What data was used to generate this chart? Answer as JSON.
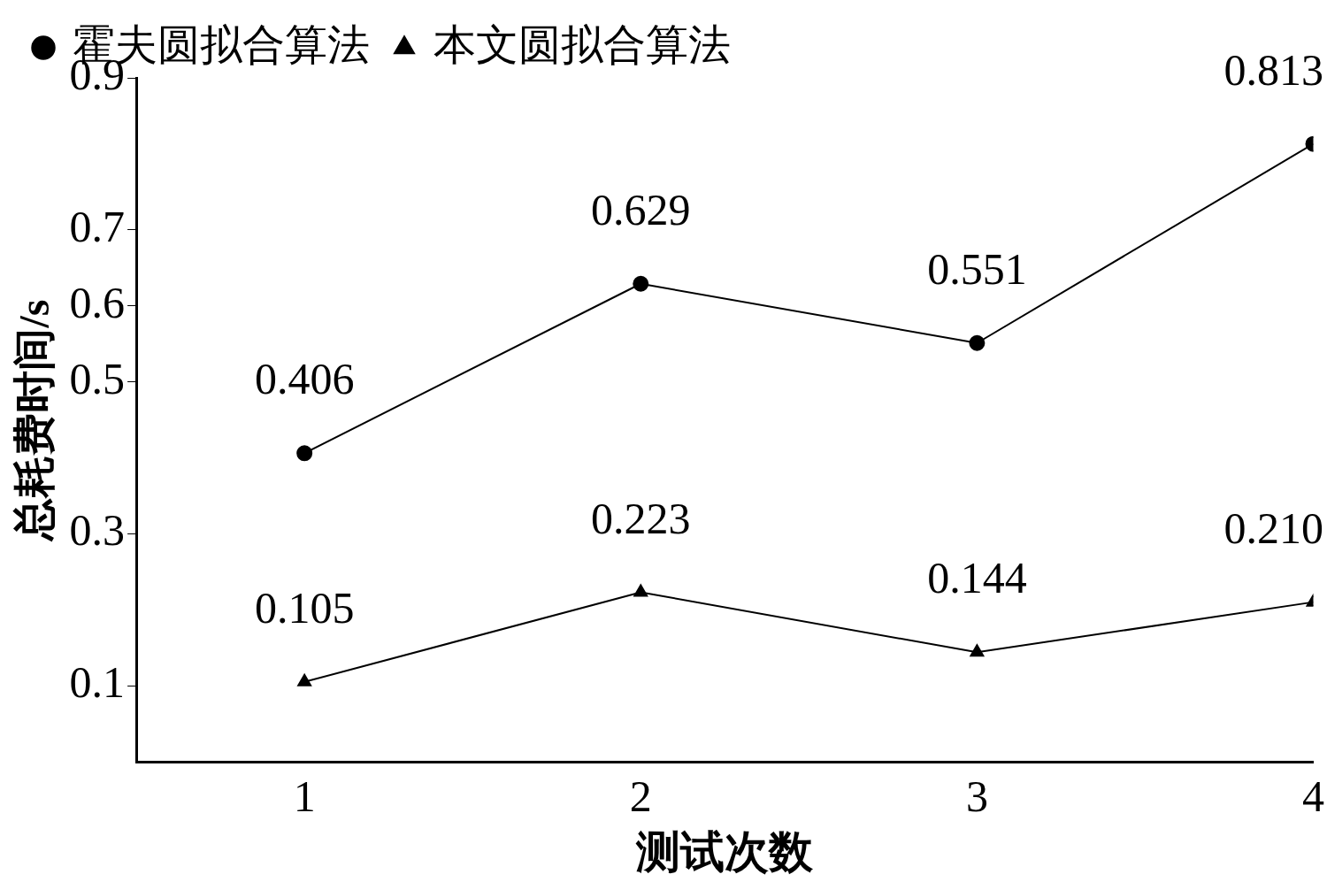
{
  "chart_data": {
    "type": "line",
    "xlabel": "测试次数",
    "ylabel": "总耗费时间/s",
    "x": [
      1,
      2,
      3,
      4
    ],
    "xlim": [
      0.5,
      4
    ],
    "xticks": [
      1,
      2,
      3,
      4
    ],
    "ylim": [
      0,
      0.9
    ],
    "yticks": [
      0.1,
      0.3,
      0.5,
      0.6,
      0.7,
      0.9
    ],
    "series": [
      {
        "name": "霍夫圆拟合算法",
        "color": "#000000",
        "marker": "circle",
        "values": [
          0.406,
          0.629,
          0.551,
          0.813
        ],
        "value_labels": [
          "0.406",
          "0.629",
          "0.551",
          "0.813"
        ]
      },
      {
        "name": "本文圆拟合算法",
        "color": "#000000",
        "marker": "triangle",
        "values": [
          0.105,
          0.223,
          0.144,
          0.21
        ],
        "value_labels": [
          "0.105",
          "0.223",
          "0.144",
          "0.210"
        ]
      }
    ],
    "grid": false,
    "legend": "top left",
    "line_style": "solid"
  }
}
